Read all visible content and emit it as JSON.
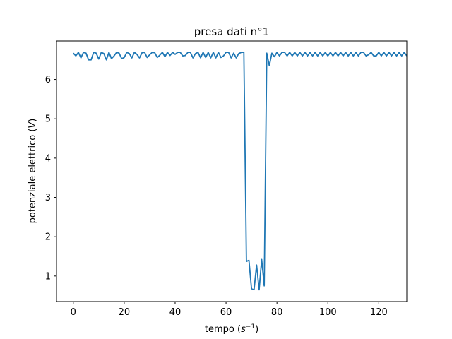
{
  "chart_data": {
    "type": "line",
    "title": "presa dati n°1",
    "xlabel_text": "tempo (",
    "xlabel_sym": "s",
    "xlabel_exp": "−1",
    "xlabel_close": ")",
    "ylabel_text": "potenziale elettrico (",
    "ylabel_sym": "V",
    "ylabel_close": ")",
    "xlim": [
      -6.6,
      131
    ],
    "ylim": [
      0.35,
      6.98
    ],
    "xticks": [
      0,
      20,
      40,
      60,
      80,
      100,
      120
    ],
    "xtick_labels": [
      "0",
      "20",
      "40",
      "60",
      "80",
      "100",
      "120"
    ],
    "yticks": [
      1,
      2,
      3,
      4,
      5,
      6
    ],
    "ytick_labels": [
      "1",
      "2",
      "3",
      "4",
      "5",
      "6"
    ],
    "series": [
      {
        "color": "#1f77b4",
        "x": [
          0,
          1,
          2,
          3,
          4,
          5,
          6,
          7,
          8,
          9,
          10,
          11,
          12,
          13,
          14,
          15,
          16,
          17,
          18,
          19,
          20,
          21,
          22,
          23,
          24,
          25,
          26,
          27,
          28,
          29,
          30,
          31,
          32,
          33,
          34,
          35,
          36,
          37,
          38,
          39,
          40,
          41,
          42,
          43,
          44,
          45,
          46,
          47,
          48,
          49,
          50,
          51,
          52,
          53,
          54,
          55,
          56,
          57,
          58,
          59,
          60,
          61,
          62,
          63,
          64,
          65,
          66,
          67,
          68,
          69,
          70,
          71,
          72,
          73,
          74,
          75,
          76,
          77,
          78,
          79,
          80,
          81,
          82,
          83,
          84,
          85,
          86,
          87,
          88,
          89,
          90,
          91,
          92,
          93,
          94,
          95,
          96,
          97,
          98,
          99,
          100,
          101,
          102,
          103,
          104,
          105,
          106,
          107,
          108,
          109,
          110,
          111,
          112,
          113,
          114,
          115,
          116,
          117,
          118,
          119,
          120,
          121,
          122,
          123,
          124,
          125,
          126,
          127,
          128,
          129,
          130,
          131
        ],
        "y": [
          6.67,
          6.6,
          6.69,
          6.55,
          6.69,
          6.67,
          6.5,
          6.5,
          6.69,
          6.67,
          6.52,
          6.69,
          6.66,
          6.5,
          6.69,
          6.53,
          6.6,
          6.69,
          6.67,
          6.53,
          6.56,
          6.69,
          6.66,
          6.55,
          6.69,
          6.64,
          6.55,
          6.68,
          6.69,
          6.56,
          6.63,
          6.69,
          6.68,
          6.56,
          6.62,
          6.69,
          6.58,
          6.69,
          6.61,
          6.69,
          6.64,
          6.69,
          6.69,
          6.6,
          6.61,
          6.69,
          6.69,
          6.55,
          6.66,
          6.69,
          6.55,
          6.69,
          6.56,
          6.69,
          6.55,
          6.69,
          6.55,
          6.69,
          6.56,
          6.6,
          6.69,
          6.69,
          6.55,
          6.67,
          6.55,
          6.66,
          6.69,
          6.69,
          1.37,
          1.4,
          0.68,
          0.65,
          1.28,
          0.65,
          1.42,
          0.75,
          6.67,
          6.35,
          6.67,
          6.58,
          6.69,
          6.6,
          6.69,
          6.69,
          6.6,
          6.69,
          6.6,
          6.69,
          6.6,
          6.69,
          6.6,
          6.69,
          6.6,
          6.69,
          6.6,
          6.69,
          6.6,
          6.69,
          6.6,
          6.69,
          6.6,
          6.69,
          6.6,
          6.69,
          6.6,
          6.69,
          6.6,
          6.69,
          6.6,
          6.69,
          6.6,
          6.69,
          6.6,
          6.69,
          6.69,
          6.6,
          6.63,
          6.69,
          6.6,
          6.6,
          6.69,
          6.6,
          6.69,
          6.6,
          6.69,
          6.6,
          6.69,
          6.6,
          6.69,
          6.6,
          6.69,
          6.6
        ]
      }
    ]
  }
}
